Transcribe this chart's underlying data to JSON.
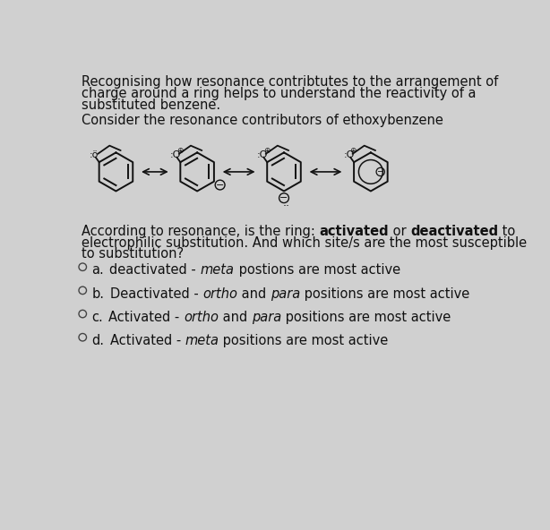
{
  "background_color": "#d0d0d0",
  "text_color": "#111111",
  "font_size_body": 10.5,
  "font_size_options": 10.5,
  "header_lines": [
    "Recognising how resonance contribtutes to the arrangement of",
    "charge around a ring helps to understand the reactivity of a",
    "substituted benzene."
  ],
  "consider_text": "Consider the resonance contributors of ethoxybenzene",
  "q_line1_pre": "According to resonance, is the ring: ",
  "q_bold1": "activated",
  "q_mid": " or ",
  "q_bold2": "deactivated",
  "q_line1_post": " to",
  "q_line2": "electrophilic substitution. And which site/s are the most susceptible",
  "q_line3": "to substitution?",
  "options": [
    {
      "letter": "a.",
      "parts": [
        [
          "deactivated - ",
          false
        ],
        [
          "meta",
          true
        ],
        [
          " postions are most active",
          false
        ]
      ]
    },
    {
      "letter": "b.",
      "parts": [
        [
          "Deactivated - ",
          false
        ],
        [
          "ortho",
          true
        ],
        [
          " and ",
          false
        ],
        [
          "para",
          true
        ],
        [
          " positions are most active",
          false
        ]
      ]
    },
    {
      "letter": "c.",
      "parts": [
        [
          "Activated - ",
          false
        ],
        [
          "ortho",
          true
        ],
        [
          " and ",
          false
        ],
        [
          "para",
          true
        ],
        [
          " positions are most active",
          false
        ]
      ]
    },
    {
      "letter": "d.",
      "parts": [
        [
          "Activated - ",
          false
        ],
        [
          "meta",
          true
        ],
        [
          " positions are most active",
          false
        ]
      ]
    }
  ]
}
